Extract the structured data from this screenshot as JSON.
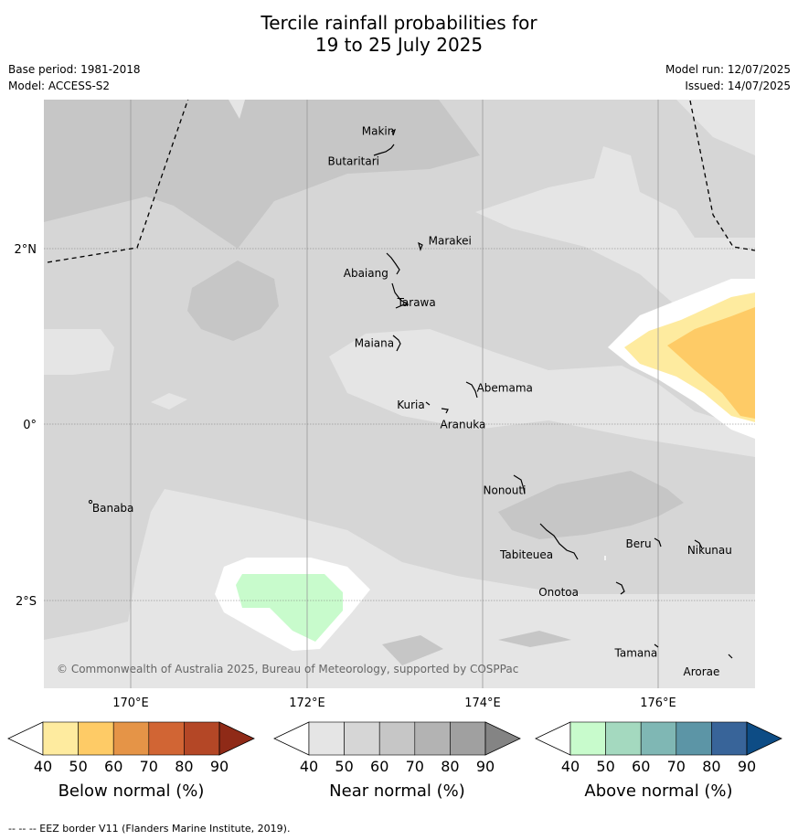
{
  "title": {
    "line1": "Tercile rainfall probabilities for",
    "line2": "19 to 25 July 2025"
  },
  "meta": {
    "base_period": "Base period: 1981-2018",
    "model": "Model: ACCESS-S2",
    "model_run": "Model run: 12/07/2025",
    "issued": "Issued: 14/07/2025"
  },
  "map": {
    "lon_ticks": [
      "170°E",
      "172°E",
      "174°E",
      "176°E"
    ],
    "lat_ticks": [
      "2°N",
      "0°",
      "2°S"
    ],
    "places": [
      {
        "name": "Makin",
        "lon": 173.0,
        "lat": 3.35
      },
      {
        "name": "Butaritari",
        "lon": 172.8,
        "lat": 3.05
      },
      {
        "name": "Marakei",
        "lon": 173.3,
        "lat": 2.0
      },
      {
        "name": "Abaiang",
        "lon": 173.0,
        "lat": 1.8
      },
      {
        "name": "Tarawa",
        "lon": 173.05,
        "lat": 1.35
      },
      {
        "name": "Maiana",
        "lon": 173.0,
        "lat": 0.9
      },
      {
        "name": "Abemama",
        "lon": 173.85,
        "lat": 0.4
      },
      {
        "name": "Kuria",
        "lon": 173.4,
        "lat": 0.22
      },
      {
        "name": "Aranuka",
        "lon": 173.6,
        "lat": 0.16
      },
      {
        "name": "Nonouti",
        "lon": 174.4,
        "lat": -0.7
      },
      {
        "name": "Banaba",
        "lon": 169.5,
        "lat": -0.85
      },
      {
        "name": "Tabiteuea",
        "lon": 174.8,
        "lat": -1.4
      },
      {
        "name": "Beru",
        "lon": 176.0,
        "lat": -1.33
      },
      {
        "name": "Nikunau",
        "lon": 176.45,
        "lat": -1.35
      },
      {
        "name": "Onotoa",
        "lon": 175.55,
        "lat": -1.85
      },
      {
        "name": "Tamana",
        "lon": 176.0,
        "lat": -2.5
      },
      {
        "name": "Arorae",
        "lon": 176.8,
        "lat": -2.65
      }
    ],
    "copyright": "© Commonwealth of Australia 2025, Bureau of Meteorology, supported by COSPPac"
  },
  "legend": {
    "ticks": [
      "40",
      "50",
      "60",
      "70",
      "80",
      "90"
    ],
    "bars": [
      {
        "title": "Below normal (%)",
        "colors": [
          "#ffffff",
          "#feeb9f",
          "#fecb66",
          "#e59447",
          "#d16534",
          "#b44726",
          "#8f2a17"
        ]
      },
      {
        "title": "Near normal (%)",
        "colors": [
          "#ffffff",
          "#e5e5e5",
          "#d6d6d6",
          "#c6c6c6",
          "#b3b3b3",
          "#a0a0a0",
          "#848484"
        ]
      },
      {
        "title": "Above normal (%)",
        "colors": [
          "#ffffff",
          "#c8fbcc",
          "#a4d9bf",
          "#7fb7b4",
          "#5c95a6",
          "#386499",
          "#0d4c85"
        ]
      }
    ]
  },
  "footnote": "--  --  -- EEZ border V11 (Flanders Marine Institute, 2019)."
}
